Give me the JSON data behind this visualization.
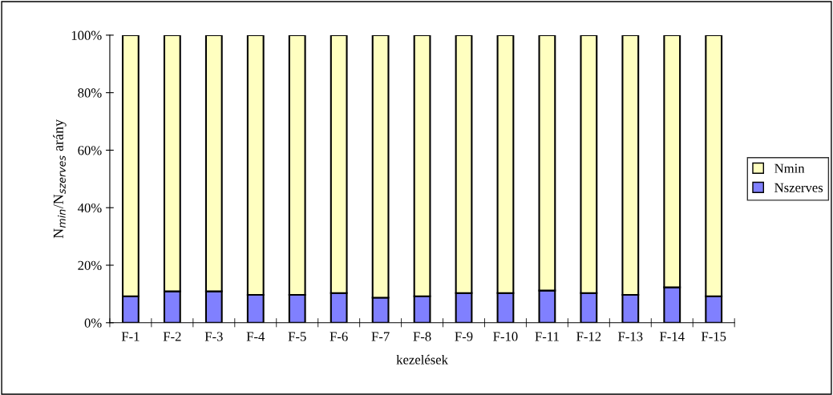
{
  "chart_data": {
    "type": "bar",
    "stacked": true,
    "xlabel": "kezelések",
    "ylabel": "N$_{min}$/N$_{szerves}$ arány",
    "categories": [
      "F-1",
      "F-2",
      "F-3",
      "F-4",
      "F-5",
      "F-6",
      "F-7",
      "F-8",
      "F-9",
      "F-10",
      "F-11",
      "F-12",
      "F-13",
      "F-14",
      "F-15"
    ],
    "series": [
      {
        "name": "Nszerves",
        "color": "#8080ff",
        "values": [
          9.2,
          10.9,
          10.9,
          9.7,
          9.7,
          10.3,
          8.7,
          9.2,
          10.3,
          10.3,
          11.2,
          10.3,
          9.7,
          12.3,
          9.2
        ]
      },
      {
        "name": "Nmin",
        "color": "#ffffc0",
        "values": [
          90.8,
          89.1,
          89.1,
          90.3,
          90.3,
          89.7,
          91.3,
          90.8,
          89.7,
          89.7,
          88.8,
          89.7,
          90.3,
          87.7,
          90.8
        ]
      }
    ],
    "ylim": [
      0,
      100
    ],
    "yticks": [
      {
        "value": 0,
        "label": "0%"
      },
      {
        "value": 20,
        "label": "20%"
      },
      {
        "value": 40,
        "label": "40%"
      },
      {
        "value": 60,
        "label": "60%"
      },
      {
        "value": 80,
        "label": "80%"
      },
      {
        "value": 100,
        "label": "100%"
      }
    ],
    "legend": "right",
    "grid": false
  }
}
